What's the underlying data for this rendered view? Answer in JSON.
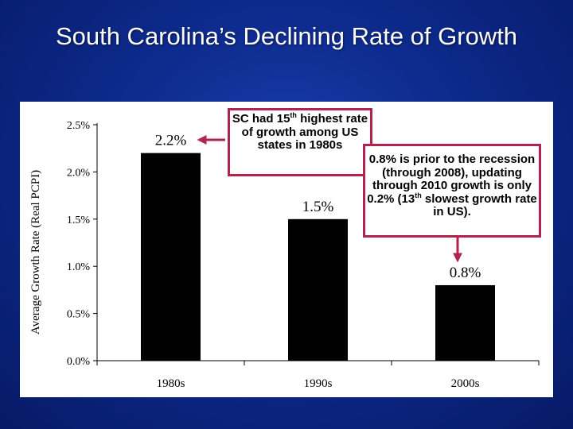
{
  "title": "South Carolina’s Declining Rate of Growth",
  "colors": {
    "background": "#0d2a8c",
    "bar": "#000000",
    "callout_border": "#b2224a",
    "arrow": "#b2224a"
  },
  "callouts": {
    "first": {
      "pre": "SC had 15",
      "sup": "th",
      "post": " highest rate of growth among US states in 1980s"
    },
    "second": {
      "pre": "0.8% is prior to the recession (through 2008), updating through 2010 growth is only 0.2% (13",
      "sup": "th",
      "post": " slowest growth rate in US)."
    }
  },
  "chart_data": {
    "type": "bar",
    "categories": [
      "1980s",
      "1990s",
      "2000s"
    ],
    "values": [
      2.2,
      1.5,
      0.8
    ],
    "data_labels": [
      "2.2%",
      "1.5%",
      "0.8%"
    ],
    "ylabel": "Average Growth Rate (Real PCPI)",
    "yticks": [
      "0.0%",
      "0.5%",
      "1.0%",
      "1.5%",
      "2.0%",
      "2.5%"
    ],
    "ylim": [
      0,
      2.5
    ],
    "grid": false
  }
}
